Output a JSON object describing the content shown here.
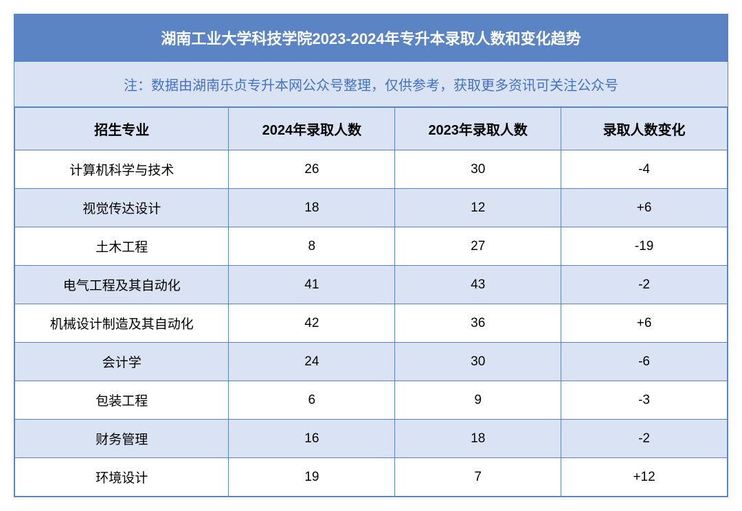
{
  "title": "湖南工业大学科技学院2023-2024年专升本录取人数和变化趋势",
  "note": "注：数据由湖南乐贞专升本网公众号整理，仅供参考，获取更多资讯可关注公众号",
  "headers": {
    "major": "招生专业",
    "count2024": "2024年录取人数",
    "count2023": "2023年录取人数",
    "change": "录取人数变化"
  },
  "rows": [
    {
      "major": "计算机科学与技术",
      "count2024": "26",
      "count2023": "30",
      "change": "-4"
    },
    {
      "major": "视觉传达设计",
      "count2024": "18",
      "count2023": "12",
      "change": "+6"
    },
    {
      "major": "土木工程",
      "count2024": "8",
      "count2023": "27",
      "change": "-19"
    },
    {
      "major": "电气工程及其自动化",
      "count2024": "41",
      "count2023": "43",
      "change": "-2"
    },
    {
      "major": "机械设计制造及其自动化",
      "count2024": "42",
      "count2023": "36",
      "change": "+6"
    },
    {
      "major": "会计学",
      "count2024": "24",
      "count2023": "30",
      "change": "-6"
    },
    {
      "major": "包装工程",
      "count2024": "6",
      "count2023": "9",
      "change": "-3"
    },
    {
      "major": "财务管理",
      "count2024": "16",
      "count2023": "18",
      "change": "-2"
    },
    {
      "major": "环境设计",
      "count2024": "19",
      "count2023": "7",
      "change": "+12"
    }
  ],
  "colors": {
    "header_bg": "#5b84c4",
    "header_text": "#ffffff",
    "alt_row_bg": "#dae3f3",
    "border": "#5b84c4",
    "note_text": "#4472c4"
  }
}
